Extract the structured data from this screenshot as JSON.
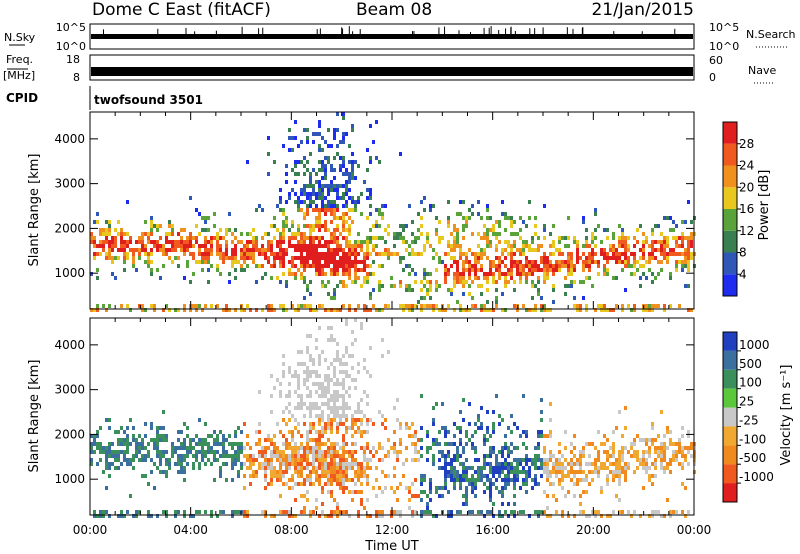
{
  "header": {
    "station": "Dome C East (fitACF)",
    "beam": "Beam 08",
    "date": "21/Jan/2015"
  },
  "strip_labels": {
    "nsky": "N.Sky",
    "nsearch": "N.Search",
    "freq": "Freq.",
    "mhz": "[MHz]",
    "nave": "Nave",
    "cpid": "CPID",
    "cpid_value": "twofsound 3501",
    "noise_top": "10^5",
    "noise_bottom": "10^0",
    "freq_top": "18",
    "freq_bottom": "8",
    "nave_top": "60",
    "nave_bottom": "0"
  },
  "colors": {
    "power_scale": [
      "#1e2cf0",
      "#2f57b8",
      "#3a7f4f",
      "#5aa23a",
      "#e8c81e",
      "#f0901e",
      "#f05a1e",
      "#e01e1e"
    ],
    "velocity_scale": [
      "#e01e1e",
      "#f05a1e",
      "#f08a1e",
      "#f0a830",
      "#c8c8c8",
      "#5ac83a",
      "#3a8f5a",
      "#3a6fa0",
      "#2040c0"
    ]
  },
  "chart_data": [
    {
      "type": "heatmap",
      "name": "power",
      "xlabel": "",
      "ylabel": "Slant Range [km]",
      "xlim": [
        "00:00",
        "24:00"
      ],
      "ylim": [
        200,
        4600
      ],
      "y_ticks": [
        1000,
        2000,
        3000,
        4000
      ],
      "colorbar_label": "Power [dB]",
      "colorbar_ticks": [
        4,
        8,
        12,
        16,
        20,
        24,
        28
      ],
      "colorbar_range": [
        0,
        32
      ]
    },
    {
      "type": "heatmap",
      "name": "velocity",
      "xlabel": "Time UT",
      "ylabel": "Slant Range [km]",
      "x_ticks": [
        "00:00",
        "04:00",
        "08:00",
        "12:00",
        "16:00",
        "20:00",
        "00:00"
      ],
      "xlim": [
        "00:00",
        "24:00"
      ],
      "ylim": [
        200,
        4600
      ],
      "y_ticks": [
        1000,
        2000,
        3000,
        4000
      ],
      "colorbar_label": "Velocity [m s⁻¹]",
      "colorbar_ticks": [
        "1000",
        "500",
        "100",
        "25",
        "-25",
        "-100",
        "-500",
        "-1000"
      ]
    }
  ]
}
